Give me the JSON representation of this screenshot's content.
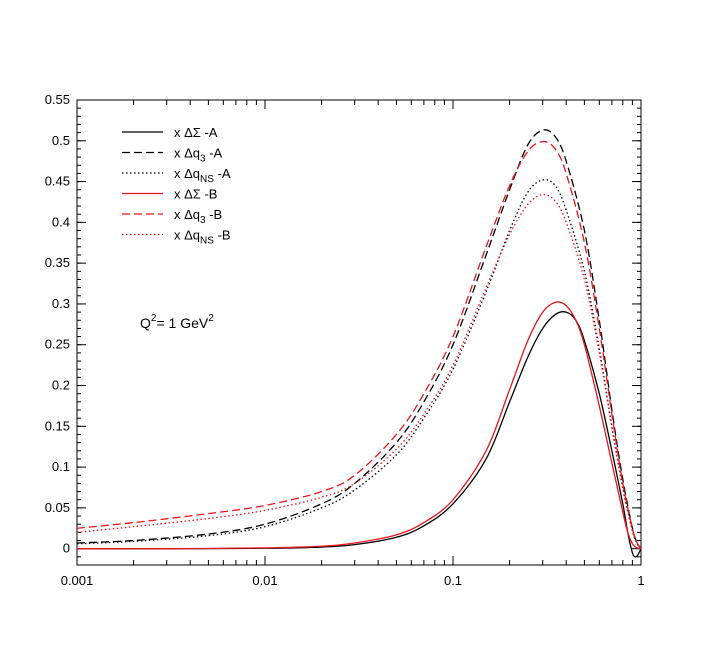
{
  "chart_data": {
    "type": "line",
    "title": "",
    "xlabel": "",
    "ylabel": "",
    "x_scale": "log",
    "xlim": [
      0.001,
      1
    ],
    "ylim": [
      -0.02,
      0.55
    ],
    "grid": false,
    "legend_position": "top-left",
    "annotation": {
      "base": "Q",
      "sup1": "2",
      "mid": "= 1 GeV",
      "sup2": "2"
    },
    "x_ticks": [
      {
        "value": 0.001,
        "label": "0.001"
      },
      {
        "value": 0.01,
        "label": "0.01"
      },
      {
        "value": 0.1,
        "label": "0.1"
      },
      {
        "value": 1,
        "label": "1"
      }
    ],
    "y_ticks": [
      {
        "value": 0,
        "label": "0"
      },
      {
        "value": 0.05,
        "label": "0.05"
      },
      {
        "value": 0.1,
        "label": "0.1"
      },
      {
        "value": 0.15,
        "label": "0.15"
      },
      {
        "value": 0.2,
        "label": "0.2"
      },
      {
        "value": 0.25,
        "label": "0.25"
      },
      {
        "value": 0.3,
        "label": "0.3"
      },
      {
        "value": 0.35,
        "label": "0.35"
      },
      {
        "value": 0.4,
        "label": "0.4"
      },
      {
        "value": 0.45,
        "label": "0.45"
      },
      {
        "value": 0.5,
        "label": "0.5"
      },
      {
        "value": 0.55,
        "label": "0.55"
      }
    ],
    "series": [
      {
        "id": "sigma-a",
        "color": "#000000",
        "dash": "solid",
        "legend": {
          "pre": "x ",
          "sym": "ΔΣ",
          "sub": "",
          "post": " -A"
        },
        "points": [
          [
            0.001,
            0
          ],
          [
            0.003,
            0
          ],
          [
            0.01,
            0.0005
          ],
          [
            0.02,
            0.002
          ],
          [
            0.03,
            0.005
          ],
          [
            0.05,
            0.014
          ],
          [
            0.07,
            0.028
          ],
          [
            0.1,
            0.055
          ],
          [
            0.15,
            0.11
          ],
          [
            0.2,
            0.18
          ],
          [
            0.25,
            0.235
          ],
          [
            0.3,
            0.27
          ],
          [
            0.35,
            0.287
          ],
          [
            0.4,
            0.29
          ],
          [
            0.45,
            0.28
          ],
          [
            0.5,
            0.255
          ],
          [
            0.6,
            0.19
          ],
          [
            0.7,
            0.12
          ],
          [
            0.8,
            0.055
          ],
          [
            0.85,
            0.02
          ],
          [
            0.9,
            -0.005
          ],
          [
            0.93,
            -0.01
          ],
          [
            0.96,
            -0.008
          ],
          [
            1,
            0
          ]
        ]
      },
      {
        "id": "q3-a",
        "color": "#000000",
        "dash": "dashed",
        "legend": {
          "pre": "x ",
          "sym": "Δq",
          "sub": "3",
          "post": " -A"
        },
        "points": [
          [
            0.001,
            0.007
          ],
          [
            0.002,
            0.01
          ],
          [
            0.005,
            0.018
          ],
          [
            0.01,
            0.03
          ],
          [
            0.02,
            0.055
          ],
          [
            0.03,
            0.08
          ],
          [
            0.05,
            0.13
          ],
          [
            0.07,
            0.18
          ],
          [
            0.1,
            0.25
          ],
          [
            0.15,
            0.36
          ],
          [
            0.2,
            0.44
          ],
          [
            0.25,
            0.495
          ],
          [
            0.3,
            0.513
          ],
          [
            0.35,
            0.505
          ],
          [
            0.4,
            0.475
          ],
          [
            0.5,
            0.39
          ],
          [
            0.6,
            0.28
          ],
          [
            0.7,
            0.17
          ],
          [
            0.8,
            0.085
          ],
          [
            0.9,
            0.025
          ],
          [
            0.95,
            0.008
          ],
          [
            1,
            0
          ]
        ]
      },
      {
        "id": "qns-a",
        "color": "#000000",
        "dash": "dotted",
        "legend": {
          "pre": "x ",
          "sym": "Δq",
          "sub": "NS",
          "post": " -A"
        },
        "points": [
          [
            0.001,
            0.006
          ],
          [
            0.002,
            0.009
          ],
          [
            0.005,
            0.016
          ],
          [
            0.01,
            0.027
          ],
          [
            0.02,
            0.05
          ],
          [
            0.03,
            0.072
          ],
          [
            0.05,
            0.115
          ],
          [
            0.07,
            0.16
          ],
          [
            0.1,
            0.22
          ],
          [
            0.15,
            0.315
          ],
          [
            0.2,
            0.39
          ],
          [
            0.25,
            0.437
          ],
          [
            0.3,
            0.452
          ],
          [
            0.35,
            0.445
          ],
          [
            0.4,
            0.415
          ],
          [
            0.5,
            0.34
          ],
          [
            0.6,
            0.245
          ],
          [
            0.7,
            0.15
          ],
          [
            0.8,
            0.075
          ],
          [
            0.9,
            0.022
          ],
          [
            0.95,
            0.007
          ],
          [
            1,
            0
          ]
        ]
      },
      {
        "id": "sigma-b",
        "color": "#e8141c",
        "dash": "solid",
        "legend": {
          "pre": "x ",
          "sym": "ΔΣ",
          "sub": "",
          "post": " -B"
        },
        "points": [
          [
            0.001,
            0
          ],
          [
            0.003,
            0
          ],
          [
            0.01,
            0.001
          ],
          [
            0.02,
            0.003
          ],
          [
            0.03,
            0.007
          ],
          [
            0.05,
            0.017
          ],
          [
            0.07,
            0.032
          ],
          [
            0.1,
            0.06
          ],
          [
            0.15,
            0.12
          ],
          [
            0.2,
            0.195
          ],
          [
            0.25,
            0.255
          ],
          [
            0.3,
            0.29
          ],
          [
            0.35,
            0.302
          ],
          [
            0.4,
            0.298
          ],
          [
            0.45,
            0.28
          ],
          [
            0.5,
            0.25
          ],
          [
            0.6,
            0.175
          ],
          [
            0.7,
            0.105
          ],
          [
            0.8,
            0.045
          ],
          [
            0.85,
            0.02
          ],
          [
            0.9,
            0.006
          ],
          [
            0.95,
            0.001
          ],
          [
            1,
            0
          ]
        ]
      },
      {
        "id": "q3-b",
        "color": "#e8141c",
        "dash": "dashed",
        "legend": {
          "pre": "x ",
          "sym": "Δq",
          "sub": "3",
          "post": " -B"
        },
        "points": [
          [
            0.001,
            0.025
          ],
          [
            0.002,
            0.032
          ],
          [
            0.005,
            0.043
          ],
          [
            0.01,
            0.053
          ],
          [
            0.02,
            0.07
          ],
          [
            0.03,
            0.09
          ],
          [
            0.05,
            0.14
          ],
          [
            0.07,
            0.19
          ],
          [
            0.1,
            0.26
          ],
          [
            0.15,
            0.37
          ],
          [
            0.2,
            0.445
          ],
          [
            0.25,
            0.487
          ],
          [
            0.3,
            0.499
          ],
          [
            0.35,
            0.49
          ],
          [
            0.4,
            0.46
          ],
          [
            0.5,
            0.375
          ],
          [
            0.6,
            0.27
          ],
          [
            0.7,
            0.165
          ],
          [
            0.8,
            0.08
          ],
          [
            0.9,
            0.025
          ],
          [
            0.95,
            0.008
          ],
          [
            1,
            0
          ]
        ]
      },
      {
        "id": "qns-b",
        "color": "#e8141c",
        "dash": "dotted",
        "legend": {
          "pre": "x ",
          "sym": "Δq",
          "sub": "NS",
          "post": " -B"
        },
        "points": [
          [
            0.001,
            0.02
          ],
          [
            0.002,
            0.027
          ],
          [
            0.005,
            0.037
          ],
          [
            0.01,
            0.047
          ],
          [
            0.02,
            0.063
          ],
          [
            0.03,
            0.08
          ],
          [
            0.05,
            0.122
          ],
          [
            0.07,
            0.165
          ],
          [
            0.1,
            0.225
          ],
          [
            0.15,
            0.32
          ],
          [
            0.2,
            0.385
          ],
          [
            0.25,
            0.422
          ],
          [
            0.3,
            0.434
          ],
          [
            0.35,
            0.426
          ],
          [
            0.4,
            0.4
          ],
          [
            0.5,
            0.33
          ],
          [
            0.6,
            0.24
          ],
          [
            0.7,
            0.148
          ],
          [
            0.8,
            0.073
          ],
          [
            0.9,
            0.022
          ],
          [
            0.95,
            0.007
          ],
          [
            1,
            0
          ]
        ]
      }
    ]
  }
}
